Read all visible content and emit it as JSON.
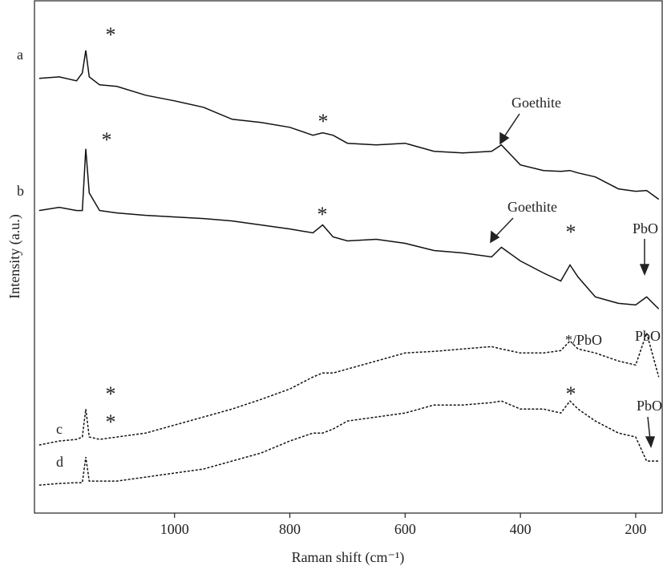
{
  "chart_data": {
    "type": "line",
    "x_label": "Raman shift (cm⁻¹)",
    "y_label": "Intensity (a.u.)",
    "x": [
      1235,
      1200,
      1170,
      1160,
      1154,
      1148,
      1130,
      1100,
      1050,
      1000,
      950,
      900,
      850,
      800,
      760,
      743,
      725,
      700,
      650,
      600,
      550,
      500,
      450,
      433,
      400,
      360,
      330,
      314,
      300,
      270,
      230,
      200,
      181,
      160
    ],
    "xlim": [
      1243,
      154
    ],
    "ylim": [
      0,
      640
    ],
    "xticks": [
      1000,
      800,
      600,
      400,
      200
    ],
    "series": [
      {
        "name": "a",
        "color": "#111111",
        "style": "solid",
        "values": [
          543,
          545,
          540,
          550,
          578,
          545,
          535,
          533,
          522,
          515,
          507,
          492,
          488,
          482,
          472,
          475,
          472,
          462,
          460,
          462,
          452,
          450,
          452,
          460,
          435,
          428,
          427,
          428,
          425,
          420,
          405,
          402,
          403,
          392
        ]
      },
      {
        "name": "b",
        "color": "#111111",
        "style": "solid",
        "values": [
          378,
          382,
          378,
          378,
          455,
          400,
          378,
          375,
          372,
          370,
          368,
          365,
          360,
          355,
          350,
          360,
          345,
          340,
          342,
          337,
          328,
          325,
          320,
          332,
          315,
          300,
          290,
          310,
          295,
          270,
          262,
          260,
          270,
          255
        ]
      },
      {
        "name": "c",
        "color": "#111111",
        "style": "dashed",
        "values": [
          85,
          90,
          92,
          95,
          130,
          95,
          92,
          95,
          100,
          110,
          120,
          130,
          142,
          155,
          170,
          175,
          175,
          180,
          190,
          200,
          202,
          205,
          208,
          205,
          200,
          200,
          203,
          215,
          205,
          200,
          190,
          185,
          225,
          170
        ]
      },
      {
        "name": "d",
        "color": "#111111",
        "style": "dashed",
        "values": [
          35,
          37,
          38,
          38,
          70,
          40,
          40,
          40,
          45,
          50,
          55,
          65,
          75,
          90,
          100,
          100,
          105,
          115,
          120,
          125,
          135,
          135,
          138,
          140,
          130,
          130,
          125,
          140,
          130,
          115,
          100,
          95,
          65,
          65
        ]
      }
    ],
    "annotations": [
      "*",
      "*",
      "Goethite",
      "*",
      "*",
      "Goethite",
      "*",
      "PbO",
      "*/PbO",
      "PbO",
      "*",
      "*",
      "*",
      "PbO"
    ]
  }
}
